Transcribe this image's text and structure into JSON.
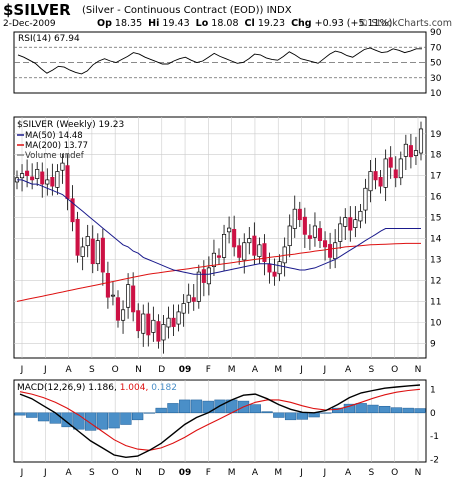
{
  "header": {
    "symbol": "$SILVER",
    "name": "(Silver - Continuous Contract (EOD))",
    "exchange": "INDX",
    "date": "2-Dec-2009",
    "op_label": "Op",
    "op": "18.35",
    "hi_label": "Hi",
    "hi": "19.43",
    "lo_label": "Lo",
    "lo": "18.08",
    "cl_label": "Cl",
    "cl": "19.23",
    "chg_label": "Chg",
    "chg": "+0.93 (+5.11%)",
    "watermark": "© StockCharts.com"
  },
  "colors": {
    "up": "#ffffff",
    "down": "#cc1144",
    "ma50": "#1a1a8c",
    "ma200": "#dd1111",
    "macd": "#000000",
    "signal": "#dd1111",
    "hist": "#4a8fc8",
    "hist_edge": "#1d5c95",
    "grid": "#cccccc",
    "axis": "#000000"
  },
  "chart_data": [
    {
      "type": "line",
      "title": "RSI(14) 67.94",
      "y_ticks": [
        "90",
        "70",
        "50",
        "30",
        "10"
      ],
      "ylim": [
        10,
        90
      ],
      "values": [
        60,
        57,
        53,
        49,
        42,
        36,
        40,
        45,
        44,
        40,
        37,
        35,
        39,
        47,
        52,
        55,
        52,
        50,
        54,
        58,
        63,
        61,
        57,
        54,
        51,
        48,
        48,
        52,
        55,
        57,
        53,
        50,
        52,
        57,
        62,
        58,
        55,
        52,
        49,
        50,
        55,
        61,
        60,
        56,
        54,
        53,
        58,
        64,
        60,
        55,
        53,
        51,
        49,
        55,
        61,
        65,
        63,
        59,
        57,
        62,
        67,
        69,
        66,
        63,
        64,
        68,
        66,
        63,
        65,
        68,
        67.94
      ]
    },
    {
      "type": "candlestick",
      "title": "$SILVER (Weekly) 19.23",
      "legend": [
        {
          "label": "MA(50) 14.48",
          "color": "#1a1a8c"
        },
        {
          "label": "MA(200) 13.77",
          "color": "#dd1111"
        },
        {
          "label": "Volume undef",
          "color": "#888888"
        }
      ],
      "y_ticks": [
        9,
        10,
        11,
        12,
        13,
        14,
        15,
        16,
        17,
        18,
        19
      ],
      "ylim": [
        8.3,
        19.8
      ],
      "x_labels": [
        "J",
        "J",
        "A",
        "S",
        "O",
        "N",
        "D",
        "09",
        "F",
        "M",
        "A",
        "M",
        "J",
        "J",
        "A",
        "S",
        "O",
        "N"
      ],
      "closes": [
        16.9,
        17.1,
        17.0,
        16.8,
        17.3,
        16.6,
        16.8,
        16.5,
        17.2,
        17.6,
        15.9,
        14.8,
        13.2,
        13.6,
        14.1,
        12.8,
        13.9,
        12.4,
        11.2,
        11.3,
        10.1,
        10.6,
        11.8,
        10.5,
        9.6,
        10.4,
        9.4,
        10.1,
        9.1,
        9.9,
        10.2,
        9.8,
        10.5,
        10.9,
        11.3,
        11.0,
        12.4,
        11.9,
        12.6,
        13.3,
        13.1,
        14.2,
        14.5,
        13.6,
        13.1,
        13.8,
        14.0,
        13.2,
        13.7,
        12.9,
        12.4,
        12.2,
        12.9,
        13.6,
        14.6,
        15.4,
        14.9,
        14.2,
        14.0,
        14.6,
        13.9,
        13.6,
        13.1,
        13.8,
        14.7,
        15.0,
        14.4,
        14.9,
        15.3,
        16.4,
        17.2,
        16.8,
        16.5,
        17.8,
        17.4,
        16.9,
        17.8,
        18.5,
        17.9,
        18.2,
        19.23
      ],
      "ma50": [
        16.8,
        16.8,
        16.7,
        16.6,
        16.6,
        16.5,
        16.4,
        16.3,
        16.2,
        16.1,
        15.9,
        15.7,
        15.5,
        15.3,
        15.1,
        14.9,
        14.7,
        14.5,
        14.3,
        14.1,
        13.9,
        13.7,
        13.6,
        13.4,
        13.3,
        13.1,
        13.0,
        12.9,
        12.8,
        12.7,
        12.6,
        12.5,
        12.45,
        12.4,
        12.35,
        12.3,
        12.3,
        12.3,
        12.3,
        12.35,
        12.4,
        12.45,
        12.5,
        12.55,
        12.6,
        12.65,
        12.7,
        12.75,
        12.8,
        12.8,
        12.8,
        12.75,
        12.7,
        12.65,
        12.6,
        12.55,
        12.5,
        12.5,
        12.55,
        12.6,
        12.7,
        12.8,
        12.9,
        13.0,
        13.15,
        13.3,
        13.45,
        13.6,
        13.75,
        13.9,
        14.05,
        14.2,
        14.35,
        14.48,
        14.48,
        14.48,
        14.48,
        14.48,
        14.48,
        14.48,
        14.48
      ],
      "ma200": [
        11.0,
        11.05,
        11.1,
        11.15,
        11.2,
        11.25,
        11.3,
        11.35,
        11.4,
        11.45,
        11.5,
        11.55,
        11.6,
        11.65,
        11.7,
        11.75,
        11.8,
        11.85,
        11.9,
        11.95,
        12.0,
        12.05,
        12.1,
        12.15,
        12.2,
        12.25,
        12.3,
        12.33,
        12.36,
        12.4,
        12.43,
        12.46,
        12.5,
        12.53,
        12.56,
        12.6,
        12.63,
        12.66,
        12.7,
        12.73,
        12.76,
        12.8,
        12.83,
        12.86,
        12.9,
        12.93,
        12.96,
        13.0,
        13.03,
        13.06,
        13.1,
        13.13,
        13.16,
        13.2,
        13.23,
        13.26,
        13.3,
        13.33,
        13.36,
        13.4,
        13.43,
        13.46,
        13.5,
        13.53,
        13.56,
        13.6,
        13.62,
        13.64,
        13.66,
        13.68,
        13.7,
        13.71,
        13.72,
        13.73,
        13.74,
        13.75,
        13.76,
        13.77,
        13.77,
        13.77,
        13.77
      ]
    },
    {
      "type": "line",
      "title": "MACD(12,26,9)",
      "title_values": [
        "1.186,",
        "1.004,",
        "0.182"
      ],
      "y_ticks": [
        "1",
        "0",
        "-1",
        "-2"
      ],
      "ylim": [
        -2.1,
        1.4
      ],
      "x_labels": [
        "J",
        "J",
        "A",
        "S",
        "O",
        "N",
        "D",
        "09",
        "F",
        "M",
        "A",
        "M",
        "J",
        "J",
        "A",
        "S",
        "O",
        "N"
      ],
      "series": [
        {
          "name": "MACD",
          "values": [
            0.8,
            0.6,
            0.3,
            0.0,
            -0.4,
            -0.8,
            -1.2,
            -1.5,
            -1.8,
            -1.9,
            -1.85,
            -1.6,
            -1.3,
            -0.9,
            -0.5,
            -0.2,
            0.0,
            0.3,
            0.55,
            0.75,
            0.8,
            0.6,
            0.35,
            0.15,
            0.02,
            0.0,
            0.1,
            0.35,
            0.65,
            0.85,
            0.95,
            1.05,
            1.1,
            1.15,
            1.186
          ]
        },
        {
          "name": "Signal",
          "values": [
            0.9,
            0.8,
            0.65,
            0.45,
            0.2,
            -0.1,
            -0.45,
            -0.8,
            -1.15,
            -1.4,
            -1.55,
            -1.6,
            -1.5,
            -1.3,
            -1.05,
            -0.75,
            -0.5,
            -0.25,
            0.0,
            0.25,
            0.45,
            0.55,
            0.55,
            0.45,
            0.3,
            0.18,
            0.12,
            0.15,
            0.28,
            0.45,
            0.62,
            0.77,
            0.88,
            0.95,
            1.004
          ]
        },
        {
          "name": "Histogram",
          "values": [
            -0.1,
            -0.2,
            -0.35,
            -0.45,
            -0.6,
            -0.7,
            -0.75,
            -0.7,
            -0.65,
            -0.5,
            -0.3,
            0.0,
            0.2,
            0.4,
            0.55,
            0.55,
            0.5,
            0.55,
            0.55,
            0.5,
            0.35,
            0.05,
            -0.2,
            -0.3,
            -0.28,
            -0.18,
            -0.02,
            0.2,
            0.37,
            0.4,
            0.33,
            0.28,
            0.22,
            0.2,
            0.182
          ]
        }
      ]
    }
  ]
}
